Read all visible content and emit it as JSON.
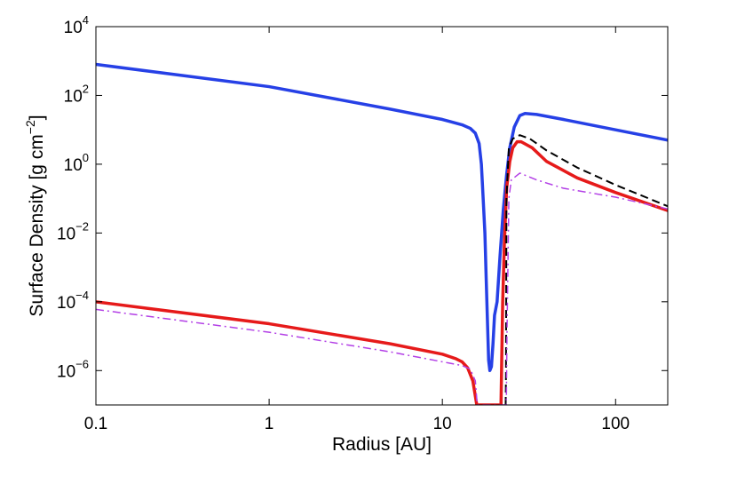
{
  "chart_data": {
    "type": "line",
    "title": "",
    "xlabel": "Radius [AU]",
    "ylabel": "Surface Density [g cm^-2]",
    "ylabel_parts": {
      "base": "Surface Density [g cm",
      "exp": "−2",
      "close": "]"
    },
    "xscale": "log",
    "yscale": "log",
    "xlim": [
      0.1,
      200
    ],
    "ylim": [
      1e-07,
      10000.0
    ],
    "grid": false,
    "legend": "none",
    "x_ticks": [
      {
        "value": 0.1,
        "label": "0.1"
      },
      {
        "value": 1,
        "label": "1"
      },
      {
        "value": 10,
        "label": "10"
      },
      {
        "value": 100,
        "label": "100"
      }
    ],
    "y_ticks": [
      {
        "value": 1e-06,
        "base": "10",
        "exp": "−6"
      },
      {
        "value": 0.0001,
        "base": "10",
        "exp": "−4"
      },
      {
        "value": 0.01,
        "base": "10",
        "exp": "−2"
      },
      {
        "value": 1,
        "base": "10",
        "exp": "0"
      },
      {
        "value": 100,
        "base": "10",
        "exp": "2"
      },
      {
        "value": 10000,
        "base": "10",
        "exp": "4"
      }
    ],
    "series": [
      {
        "color": "#2640e6",
        "style": "solid",
        "points": [
          [
            0.1,
            800
          ],
          [
            1,
            180
          ],
          [
            5,
            40
          ],
          [
            10,
            20
          ],
          [
            13,
            14
          ],
          [
            14.5,
            11
          ],
          [
            15.5,
            8
          ],
          [
            16.3,
            4
          ],
          [
            16.8,
            1
          ],
          [
            17.2,
            0.1
          ],
          [
            17.6,
            0.01
          ],
          [
            17.9,
            0.0005
          ],
          [
            18.2,
            3e-05
          ],
          [
            18.5,
            2e-06
          ],
          [
            18.8,
            1e-06
          ],
          [
            19.2,
            1.3e-06
          ],
          [
            19.6,
            6e-06
          ],
          [
            20,
            4e-05
          ],
          [
            20.7,
            0.0001
          ],
          [
            21.5,
            0.002
          ],
          [
            22.5,
            0.05
          ],
          [
            23.5,
            0.5
          ],
          [
            24.5,
            3
          ],
          [
            26,
            12
          ],
          [
            28,
            26
          ],
          [
            30,
            30
          ],
          [
            35,
            28
          ],
          [
            50,
            20
          ],
          [
            100,
            10
          ],
          [
            200,
            5
          ]
        ]
      },
      {
        "color": "#e61a1a",
        "style": "solid",
        "points": [
          [
            0.1,
            0.0001
          ],
          [
            1,
            2.3e-05
          ],
          [
            5,
            6e-06
          ],
          [
            10,
            3e-06
          ],
          [
            12,
            2.2e-06
          ],
          [
            13,
            1.8e-06
          ],
          [
            14,
            1.2e-06
          ],
          [
            15,
            5e-07
          ],
          [
            15.8,
            1e-07
          ],
          [
            21.8,
            1e-07
          ],
          [
            22.3,
            0.0001
          ],
          [
            22.8,
            0.005
          ],
          [
            23.5,
            0.2
          ],
          [
            24.5,
            1.2
          ],
          [
            25.5,
            3
          ],
          [
            27,
            4.5
          ],
          [
            28.5,
            4.5
          ],
          [
            33,
            3
          ],
          [
            40,
            1.2
          ],
          [
            60,
            0.4
          ],
          [
            100,
            0.15
          ],
          [
            200,
            0.045
          ]
        ]
      },
      {
        "color": "#000000",
        "style": "dashed",
        "points": [
          [
            23.2,
            1e-07
          ],
          [
            23.3,
            1e-06
          ],
          [
            23.45,
            0.1
          ],
          [
            24.2,
            3
          ],
          [
            25.5,
            5.5
          ],
          [
            28,
            7
          ],
          [
            32,
            5.5
          ],
          [
            40,
            2.5
          ],
          [
            60,
            0.8
          ],
          [
            100,
            0.25
          ],
          [
            200,
            0.06
          ]
        ]
      },
      {
        "color": "#b340e6",
        "style": "dashdot",
        "points": [
          [
            0.1,
            6e-05
          ],
          [
            1,
            1.3e-05
          ],
          [
            5,
            3.5e-06
          ],
          [
            10,
            1.8e-06
          ],
          [
            13,
            1.4e-06
          ],
          [
            14.5,
            1.1e-06
          ],
          [
            15.5,
            5e-07
          ],
          [
            15.9,
            1e-07
          ],
          [
            23.4,
            1e-07
          ],
          [
            23.6,
            1e-05
          ],
          [
            24.2,
            0.1
          ],
          [
            25,
            0.35
          ],
          [
            28,
            0.55
          ],
          [
            35,
            0.35
          ],
          [
            50,
            0.2
          ],
          [
            100,
            0.11
          ],
          [
            200,
            0.05
          ]
        ]
      }
    ]
  }
}
